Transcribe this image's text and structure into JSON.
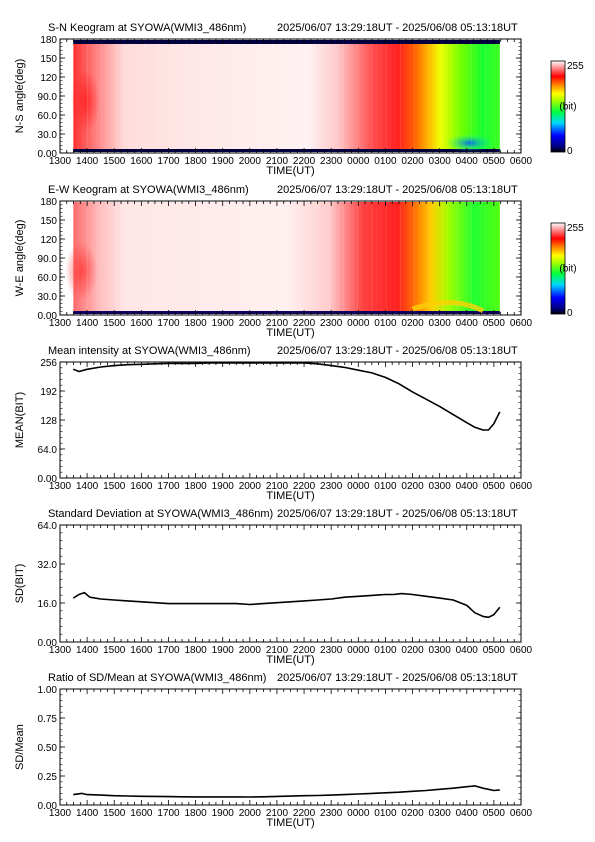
{
  "time_range_text": "2025/06/07 13:29:18UT - 2025/06/08 05:13:18UT",
  "x_tick_labels": [
    "1300",
    "1400",
    "1500",
    "1600",
    "1700",
    "1800",
    "1900",
    "2000",
    "2100",
    "2200",
    "2300",
    "0000",
    "0100",
    "0200",
    "0300",
    "0400",
    "0500",
    "0600"
  ],
  "colorbar": {
    "max_label": "255",
    "min_label": "0",
    "unit_label": "(bit)"
  },
  "chart_data": [
    {
      "type": "heatmap",
      "title": "S-N Keogram at SYOWA(WMI3_486nm)",
      "xlabel": "TIME(UT)",
      "ylabel": "N-S angle(deg)",
      "xlim": [
        13,
        30
      ],
      "ylim": [
        0,
        180
      ],
      "ytick_labels": [
        "180",
        "150",
        "120",
        "90.0",
        "60.0",
        "30.0",
        "0.00"
      ],
      "data_xlim": [
        13.49,
        29.22
      ],
      "value_range": [
        0,
        255
      ]
    },
    {
      "type": "heatmap",
      "title": "E-W Keogram at SYOWA(WMI3_486nm)",
      "xlabel": "TIME(UT)",
      "ylabel": "W-E angle(deg)",
      "xlim": [
        13,
        30
      ],
      "ylim": [
        0,
        180
      ],
      "ytick_labels": [
        "180",
        "150",
        "120",
        "90.0",
        "60.0",
        "30.0",
        "0.00"
      ],
      "data_xlim": [
        13.49,
        29.22
      ],
      "value_range": [
        0,
        255
      ]
    },
    {
      "type": "line",
      "title": "Mean intensity at SYOWA(WMI3_486nm)",
      "xlabel": "TIME(UT)",
      "ylabel": "MEAN(BIT)",
      "xlim": [
        13,
        30
      ],
      "ylim": [
        0,
        256
      ],
      "ytick_labels": [
        "256",
        "192",
        "128",
        "64.0",
        "0.00"
      ],
      "x": [
        13.49,
        13.7,
        14.0,
        14.5,
        15.0,
        15.5,
        16.0,
        16.5,
        17.0,
        17.5,
        18.0,
        18.5,
        19.0,
        19.5,
        20.0,
        20.5,
        21.0,
        21.5,
        22.0,
        22.5,
        23.0,
        23.5,
        24.0,
        24.5,
        25.0,
        25.5,
        26.0,
        26.5,
        27.0,
        27.5,
        28.0,
        28.3,
        28.6,
        28.8,
        29.0,
        29.22
      ],
      "y": [
        240,
        235,
        240,
        245,
        248,
        250,
        251,
        252,
        253,
        253,
        253,
        254,
        254,
        254,
        254,
        254,
        254,
        254,
        254,
        252,
        248,
        244,
        238,
        232,
        222,
        208,
        190,
        174,
        158,
        140,
        122,
        112,
        106,
        106,
        120,
        146
      ]
    },
    {
      "type": "line",
      "title": "Standard Deviation at SYOWA(WMI3_486nm)",
      "xlabel": "TIME(UT)",
      "ylabel": "SD(BIT)",
      "xlim": [
        13,
        30
      ],
      "ylim": [
        0,
        64
      ],
      "ytick_labels": [
        "64.0",
        "32.0",
        "16.0",
        "0.00"
      ],
      "x": [
        13.49,
        13.7,
        13.9,
        14.1,
        14.5,
        15.0,
        15.5,
        16.0,
        16.5,
        17.0,
        17.5,
        18.0,
        18.5,
        19.0,
        19.5,
        20.0,
        20.5,
        21.0,
        21.5,
        22.0,
        22.5,
        23.0,
        23.5,
        24.0,
        24.5,
        25.0,
        25.3,
        25.6,
        26.0,
        26.5,
        27.0,
        27.5,
        28.0,
        28.3,
        28.6,
        28.8,
        29.0,
        29.22
      ],
      "y": [
        24,
        26,
        27,
        24.5,
        23.5,
        23,
        22.5,
        22,
        21.5,
        21,
        21,
        21,
        21,
        21,
        21,
        20.5,
        21,
        21.5,
        22,
        22.5,
        23,
        23.5,
        24.5,
        25,
        25.5,
        26,
        26,
        26.5,
        26,
        25,
        24,
        23,
        20,
        16,
        14,
        13.5,
        15,
        19
      ]
    },
    {
      "type": "line",
      "title": "Ratio of SD/Mean at SYOWA(WMI3_486nm)",
      "xlabel": "TIME(UT)",
      "ylabel": "SD/Mean",
      "xlim": [
        13,
        30
      ],
      "ylim": [
        0,
        1
      ],
      "ytick_labels": [
        "1.00",
        "0.75",
        "0.50",
        "0.25",
        "0.00"
      ],
      "x": [
        13.49,
        13.8,
        14.0,
        14.5,
        15.0,
        15.5,
        16.0,
        16.5,
        17.0,
        17.5,
        18.0,
        18.5,
        19.0,
        19.5,
        20.0,
        20.5,
        21.0,
        21.5,
        22.0,
        22.5,
        23.0,
        23.5,
        24.0,
        24.5,
        25.0,
        25.5,
        26.0,
        26.5,
        27.0,
        27.5,
        28.0,
        28.3,
        28.6,
        29.0,
        29.22
      ],
      "y": [
        0.09,
        0.1,
        0.09,
        0.085,
        0.08,
        0.078,
        0.075,
        0.074,
        0.072,
        0.071,
        0.07,
        0.07,
        0.07,
        0.07,
        0.069,
        0.071,
        0.074,
        0.077,
        0.08,
        0.082,
        0.085,
        0.09,
        0.095,
        0.1,
        0.105,
        0.11,
        0.118,
        0.125,
        0.135,
        0.145,
        0.158,
        0.165,
        0.145,
        0.125,
        0.13
      ]
    }
  ]
}
